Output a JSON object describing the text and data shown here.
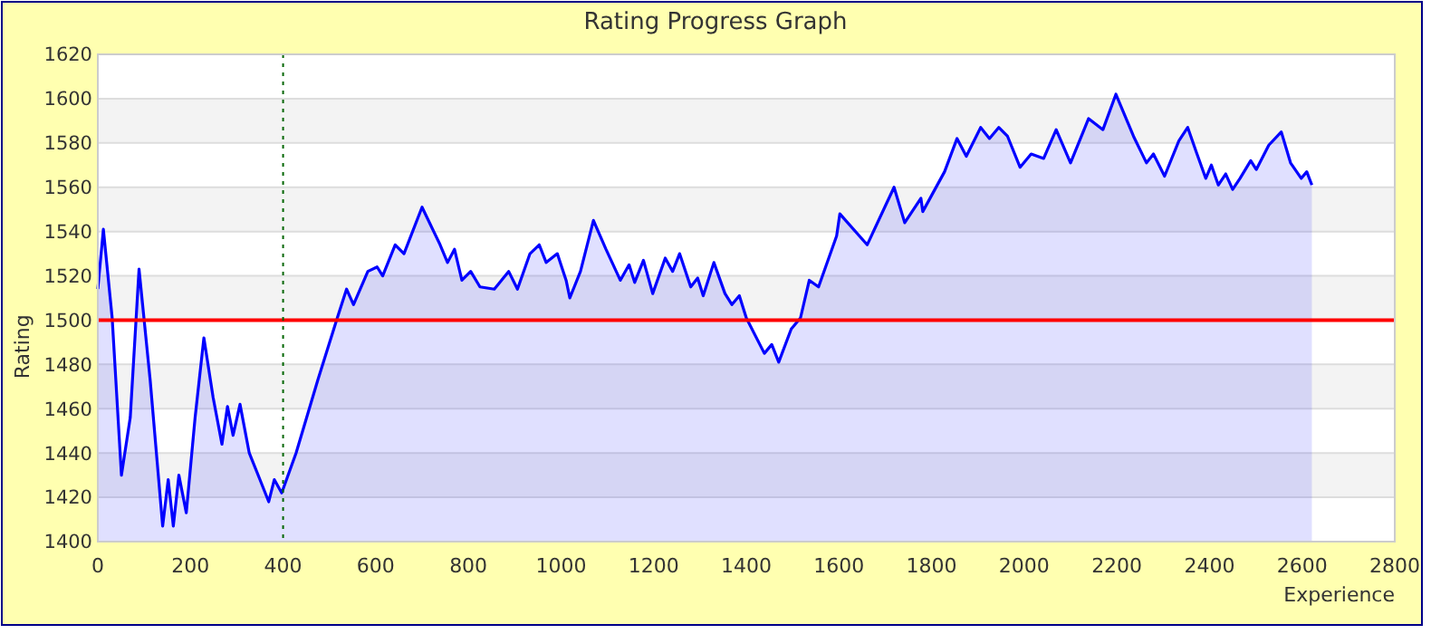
{
  "chart_data": {
    "type": "area",
    "title": "Rating Progress Graph",
    "xlabel": "Experience",
    "ylabel": "Rating",
    "xlim": [
      0,
      2800
    ],
    "xticks": [
      0,
      200,
      400,
      600,
      800,
      1000,
      1200,
      1400,
      1600,
      1800,
      2000,
      2200,
      2400,
      2600,
      2800
    ],
    "ylim": [
      1400,
      1620
    ],
    "yticks": [
      1400,
      1420,
      1440,
      1460,
      1480,
      1500,
      1520,
      1540,
      1560,
      1580,
      1600,
      1620
    ],
    "grid": "y",
    "ref_lines": [
      {
        "axis": "y",
        "value": 1500,
        "color": "#ff0000",
        "line_style": "solid"
      },
      {
        "axis": "x",
        "value": 400,
        "color": "#006600",
        "line_style": "dotted"
      }
    ],
    "series": [
      {
        "color": "#0000ff",
        "x": [
          0,
          12,
          31,
          51,
          70,
          89,
          113,
          140,
          152,
          163,
          175,
          191,
          210,
          229,
          249,
          268,
          280,
          292,
          307,
          327,
          350,
          369,
          381,
          397,
          428,
          475,
          517,
          537,
          552,
          583,
          603,
          615,
          642,
          661,
          700,
          739,
          755,
          770,
          786,
          805,
          825,
          856,
          887,
          906,
          933,
          953,
          968,
          992,
          1011,
          1019,
          1042,
          1070,
          1097,
          1128,
          1147,
          1159,
          1178,
          1198,
          1225,
          1241,
          1256,
          1280,
          1295,
          1307,
          1330,
          1354,
          1369,
          1385,
          1400,
          1439,
          1455,
          1470,
          1497,
          1517,
          1536,
          1556,
          1595,
          1602,
          1661,
          1719,
          1742,
          1777,
          1781,
          1828,
          1855,
          1875,
          1906,
          1925,
          1945,
          1964,
          1991,
          2015,
          2042,
          2069,
          2100,
          2139,
          2170,
          2198,
          2236,
          2264,
          2279,
          2303,
          2334,
          2353,
          2373,
          2392,
          2404,
          2419,
          2435,
          2450,
          2466,
          2489,
          2501,
          2528,
          2555,
          2575,
          2598,
          2610,
          2621
        ],
        "values": [
          1514,
          1541,
          1501,
          1430,
          1456,
          1523,
          1473,
          1407,
          1428,
          1407,
          1430,
          1413,
          1456,
          1492,
          1465,
          1444,
          1461,
          1448,
          1462,
          1440,
          1428,
          1418,
          1428,
          1422,
          1440,
          1473,
          1501,
          1514,
          1507,
          1522,
          1524,
          1520,
          1534,
          1530,
          1551,
          1534,
          1526,
          1532,
          1518,
          1522,
          1515,
          1514,
          1522,
          1514,
          1530,
          1534,
          1526,
          1530,
          1518,
          1510,
          1522,
          1545,
          1532,
          1518,
          1525,
          1517,
          1527,
          1512,
          1528,
          1522,
          1530,
          1515,
          1519,
          1511,
          1526,
          1512,
          1507,
          1511,
          1501,
          1485,
          1489,
          1481,
          1496,
          1501,
          1518,
          1515,
          1538,
          1548,
          1534,
          1560,
          1544,
          1555,
          1549,
          1567,
          1582,
          1574,
          1587,
          1582,
          1587,
          1583,
          1569,
          1575,
          1573,
          1586,
          1571,
          1591,
          1586,
          1602,
          1583,
          1571,
          1575,
          1565,
          1581,
          1587,
          1575,
          1564,
          1570,
          1561,
          1566,
          1559,
          1564,
          1572,
          1568,
          1579,
          1585,
          1571,
          1564,
          1567,
          1561
        ]
      }
    ]
  }
}
